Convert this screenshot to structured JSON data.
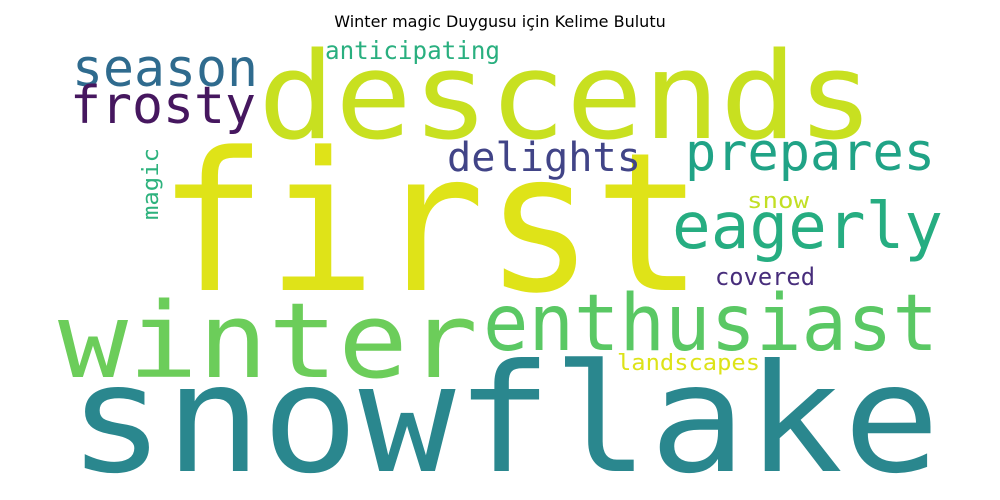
{
  "title": "Winter magic Duygusu için Kelime Bulutu",
  "words": [
    {
      "text": "first",
      "color": "#dfe318"
    },
    {
      "text": "snowflake",
      "color": "#2a878e"
    },
    {
      "text": "descends",
      "color": "#c8e020"
    },
    {
      "text": "winter",
      "color": "#6ccd5a"
    },
    {
      "text": "enthusiast",
      "color": "#5ac864"
    },
    {
      "text": "eagerly",
      "color": "#26ad81"
    },
    {
      "text": "prepares",
      "color": "#20a386"
    },
    {
      "text": "season",
      "color": "#2f6b8e"
    },
    {
      "text": "frosty",
      "color": "#46175f"
    },
    {
      "text": "delights",
      "color": "#414487"
    },
    {
      "text": "anticipating",
      "color": "#29af7f"
    },
    {
      "text": "covered",
      "color": "#472d7b"
    },
    {
      "text": "landscapes",
      "color": "#dde318"
    },
    {
      "text": "snow",
      "color": "#c2df23"
    },
    {
      "text": "magic",
      "color": "#2db27d"
    }
  ]
}
